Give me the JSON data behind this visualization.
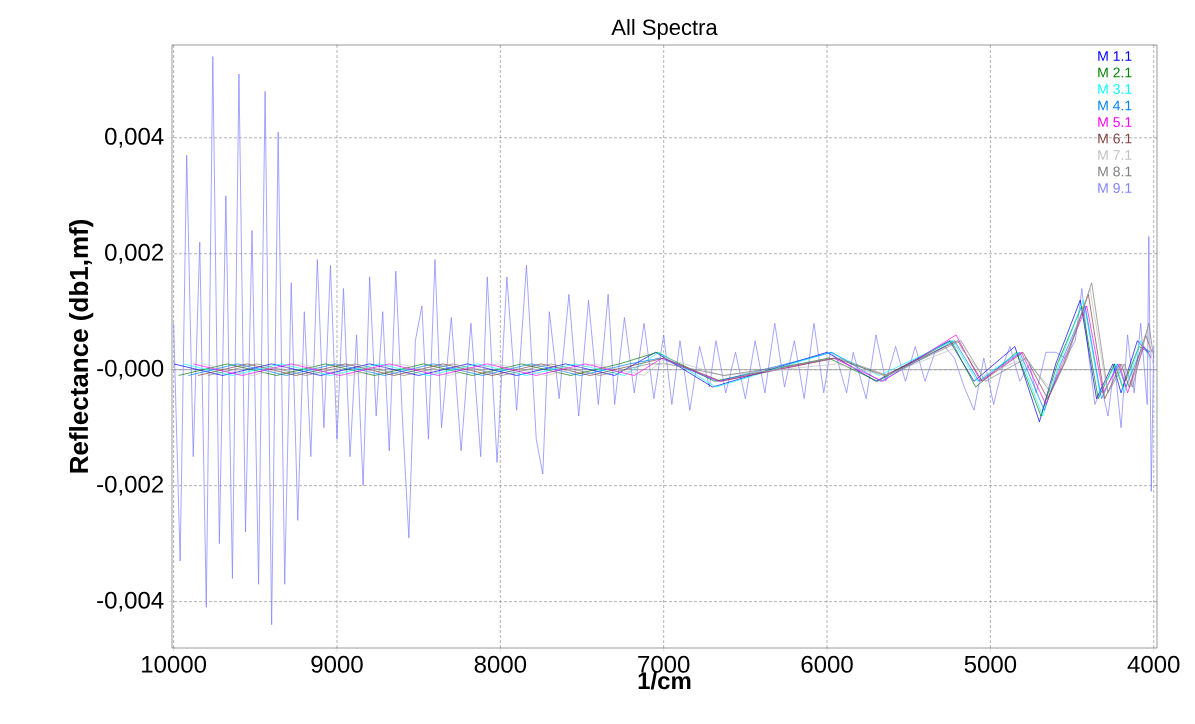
{
  "chart_data": {
    "type": "line",
    "title": "All Spectra",
    "xlabel": "1/cm",
    "ylabel": "Reflectance (db1,mf)",
    "xlim": [
      10010,
      3980
    ],
    "ylim": [
      -0.0048,
      0.0056
    ],
    "xticks": [
      10000,
      9000,
      8000,
      7000,
      6000,
      5000,
      4000
    ],
    "yticks": [
      {
        "value": 0.004,
        "label": "0,004"
      },
      {
        "value": 0.002,
        "label": "0,002"
      },
      {
        "value": 0,
        "label": "-0,000"
      },
      {
        "value": -0.002,
        "label": "-0,002"
      },
      {
        "value": -0.004,
        "label": "-0,004"
      }
    ],
    "grid": true,
    "legend": "top right",
    "ref_lines": [
      {
        "axis": "y",
        "value": 0,
        "color": "#a0a0a0"
      }
    ],
    "series": [
      {
        "name": "M 1.1",
        "color": "#0000ff",
        "x": [
          10000,
          9700,
          9400,
          9100,
          8800,
          8500,
          8200,
          7900,
          7600,
          7300,
          7050,
          6700,
          6000,
          5700,
          5250,
          5100,
          4850,
          4700,
          4600,
          4450,
          4350,
          4250,
          4200,
          4100,
          4035
        ],
        "values": [
          0.0001,
          -0.0001,
          0.0001,
          -0.0001,
          0.0001,
          -0.0001,
          0.0001,
          -0.0001,
          0.0001,
          -0.0001,
          0.0003,
          -0.0003,
          0.0003,
          -0.0002,
          0.0005,
          -0.0002,
          0.0004,
          -0.0009,
          0.0001,
          0.0012,
          -0.0005,
          0.0001,
          -0.0004,
          0.0005,
          0.0003
        ]
      },
      {
        "name": "M 2.1",
        "color": "#008000",
        "x": [
          9970,
          9670,
          9370,
          9070,
          8770,
          8470,
          8170,
          7870,
          7570,
          7270,
          7040,
          6690,
          5990,
          5690,
          5240,
          5090,
          4840,
          4690,
          4590,
          4440,
          4340,
          4240,
          4190,
          4090,
          4030
        ],
        "values": [
          -0.0001,
          0.0001,
          -0.0001,
          0.0001,
          -0.0001,
          0.0001,
          -0.0001,
          0.0001,
          -0.0001,
          0.0001,
          0.0003,
          -0.0002,
          0.0002,
          -0.0002,
          0.0005,
          -0.0003,
          0.0003,
          -0.0008,
          0.0001,
          0.0011,
          -0.0005,
          0.0001,
          -0.0003,
          0.0004,
          0.0003
        ]
      },
      {
        "name": "M 3.1",
        "color": "#00ffff",
        "x": [
          9940,
          9640,
          9340,
          9040,
          8740,
          8440,
          8140,
          7840,
          7540,
          7240,
          7030,
          6680,
          5980,
          5680,
          5230,
          5080,
          4830,
          4680,
          4580,
          4430,
          4330,
          4230,
          4180,
          4080,
          4025
        ],
        "values": [
          0.0001,
          -0.0001,
          0.0001,
          -0.0001,
          0.0001,
          -0.0001,
          0.0001,
          -0.0001,
          0.0001,
          -0.0001,
          0.0003,
          -0.0003,
          0.0003,
          -0.0001,
          0.0005,
          -0.0002,
          0.0003,
          -0.0008,
          0.0001,
          0.0012,
          -0.0004,
          0.0001,
          -0.0004,
          0.0005,
          0.0002
        ]
      },
      {
        "name": "M 4.1",
        "color": "#0080ff",
        "x": [
          9910,
          9610,
          9310,
          9010,
          8710,
          8410,
          8110,
          7810,
          7510,
          7210,
          7020,
          6670,
          5970,
          5670,
          5220,
          5070,
          4820,
          4670,
          4570,
          4420,
          4320,
          4220,
          4170,
          4070,
          4020
        ],
        "values": [
          -0.0001,
          0.0001,
          -0.0001,
          0.0001,
          -0.0001,
          0.0001,
          -0.0001,
          0.0001,
          -0.0001,
          0.0001,
          0.0002,
          -0.0002,
          0.0003,
          -0.0002,
          0.0005,
          -0.0002,
          0.0003,
          -0.0007,
          0.0001,
          0.0011,
          -0.0005,
          0.0001,
          -0.0003,
          0.0004,
          0.0003
        ]
      },
      {
        "name": "M 5.1",
        "color": "#ff00ff",
        "x": [
          9880,
          9580,
          9280,
          8980,
          8680,
          8380,
          8080,
          7780,
          7480,
          7180,
          7010,
          6660,
          5960,
          5660,
          5210,
          5060,
          4810,
          4660,
          4560,
          4410,
          4310,
          4210,
          4160,
          4060,
          4015
        ],
        "values": [
          0.0001,
          -0.0001,
          0.0001,
          -0.0001,
          0.0001,
          -0.0001,
          0.0001,
          -0.0001,
          0.0001,
          -0.0001,
          0.0002,
          -0.0002,
          0.0002,
          -0.0002,
          0.0006,
          -0.0002,
          0.0003,
          -0.0006,
          0.0001,
          0.0011,
          -0.0004,
          0.0001,
          -0.0004,
          0.0004,
          0.0002
        ]
      },
      {
        "name": "M 6.1",
        "color": "#804040",
        "x": [
          9850,
          9550,
          9250,
          8950,
          8650,
          8350,
          8050,
          7750,
          7450,
          7150,
          7000,
          6650,
          5950,
          5650,
          5200,
          5050,
          4800,
          4650,
          4550,
          4400,
          4300,
          4200,
          4150,
          4050,
          4010
        ],
        "values": [
          -0.0001,
          0.0001,
          -0.0001,
          0.0001,
          -0.0001,
          0.0001,
          -0.0001,
          0.0001,
          -0.0001,
          0.0001,
          0.0002,
          -0.0002,
          0.0002,
          -0.0001,
          0.0005,
          -0.0002,
          0.0003,
          -0.0005,
          0.0001,
          0.0013,
          -0.0005,
          0.0001,
          -0.0003,
          0.0006,
          0.0003
        ]
      },
      {
        "name": "M 7.1",
        "color": "#c0c0c0",
        "x": [
          9820,
          9520,
          9220,
          8920,
          8620,
          8320,
          8020,
          7720,
          7420,
          7120,
          6990,
          6640,
          5940,
          5640,
          5190,
          5040,
          4790,
          4640,
          4540,
          4390,
          4290,
          4190,
          4140,
          4040,
          4005
        ],
        "values": [
          0.0001,
          -0.0001,
          0.0001,
          -0.0001,
          0.0001,
          -0.0001,
          0.0001,
          -0.0001,
          0.0001,
          -0.0001,
          0.0002,
          -0.0001,
          0.0001,
          -0.0001,
          0.0004,
          -0.0001,
          0.0002,
          -0.0003,
          0.0002,
          0.0014,
          -0.0003,
          0.0001,
          -0.0003,
          0.0007,
          0.0001
        ]
      },
      {
        "name": "M 8.1",
        "color": "#808080",
        "x": [
          9790,
          9490,
          9190,
          8890,
          8590,
          8290,
          7990,
          7690,
          7390,
          7090,
          6980,
          6630,
          5930,
          5630,
          5180,
          5030,
          4780,
          4630,
          4530,
          4380,
          4280,
          4180,
          4130,
          4030,
          4000
        ],
        "values": [
          -0.0001,
          0.0001,
          -0.0001,
          0.0001,
          -0.0001,
          0.0001,
          -0.0001,
          0.0001,
          -0.0001,
          0.0001,
          0.0001,
          -0.0001,
          0.0002,
          -0.0001,
          0.0005,
          -0.0002,
          0.0002,
          -0.0004,
          0.0002,
          0.0015,
          -0.0004,
          0.0001,
          -0.0003,
          0.0008,
          0.0002
        ]
      },
      {
        "name": "M 9.1",
        "color": "#8080ff",
        "x": [
          10000,
          9960,
          9920,
          9880,
          9840,
          9800,
          9760,
          9720,
          9680,
          9640,
          9600,
          9560,
          9520,
          9480,
          9440,
          9400,
          9360,
          9320,
          9280,
          9240,
          9200,
          9160,
          9120,
          9080,
          9040,
          9000,
          8960,
          8920,
          8880,
          8840,
          8800,
          8760,
          8720,
          8680,
          8640,
          8600,
          8560,
          8520,
          8480,
          8440,
          8400,
          8360,
          8300,
          8240,
          8180,
          8120,
          8080,
          8020,
          7960,
          7900,
          7840,
          7780,
          7740,
          7700,
          7640,
          7580,
          7520,
          7460,
          7400,
          7340,
          7300,
          7240,
          7180,
          7120,
          7060,
          7000,
          6950,
          6900,
          6840,
          6780,
          6720,
          6680,
          6620,
          6560,
          6500,
          6440,
          6380,
          6320,
          6260,
          6200,
          6140,
          6080,
          6020,
          5980,
          5940,
          5880,
          5840,
          5760,
          5700,
          5640,
          5580,
          5520,
          5460,
          5400,
          5340,
          5280,
          5220,
          5160,
          5100,
          5040,
          4980,
          4920,
          4880,
          4820,
          4760,
          4720,
          4660,
          4600,
          4540,
          4480,
          4440,
          4400,
          4360,
          4320,
          4280,
          4240,
          4200,
          4160,
          4120,
          4080,
          4040,
          4030,
          4015,
          4000
        ],
        "values": [
          0.0008,
          -0.0033,
          0.0037,
          -0.0015,
          0.0022,
          -0.0041,
          0.0054,
          -0.003,
          0.003,
          -0.0036,
          0.0051,
          -0.0028,
          0.0024,
          -0.0037,
          0.0048,
          -0.0044,
          0.0041,
          -0.0037,
          0.0015,
          -0.0026,
          0.001,
          -0.0015,
          0.0019,
          -0.001,
          0.0018,
          -0.0012,
          0.0014,
          -0.0015,
          0.0006,
          -0.002,
          0.0016,
          -0.0008,
          0.001,
          -0.0014,
          0.0017,
          -0.0008,
          -0.0029,
          0.0005,
          0.0011,
          -0.0012,
          0.0019,
          -0.001,
          0.0009,
          -0.0014,
          0.0008,
          -0.0015,
          0.0016,
          -0.0016,
          0.0016,
          -0.0007,
          0.0018,
          -0.0012,
          -0.0018,
          0.001,
          -0.0005,
          0.0013,
          -0.0008,
          0.0012,
          -0.0006,
          0.0013,
          -0.0006,
          0.0009,
          -0.0004,
          0.0008,
          -0.0005,
          0.0006,
          -0.0006,
          0.0005,
          -0.0007,
          0.0004,
          -0.0003,
          0.0005,
          -0.0004,
          0.0003,
          -0.0005,
          0.0005,
          -0.0004,
          0.0008,
          -0.0003,
          0.0005,
          -0.0005,
          0.0008,
          -0.0004,
          0.0003,
          0.0002,
          -0.0004,
          0.0003,
          -0.0005,
          0.0006,
          -0.0002,
          0.0004,
          -0.0002,
          0.0004,
          -0.0002,
          0.0003,
          0.0004,
          0.0002,
          -0.0003,
          -0.0007,
          0.0002,
          -0.0006,
          0.0001,
          0.0004,
          -0.0002,
          0.0001,
          -0.0004,
          0.0003,
          0.0003,
          0.0002,
          0.0005,
          0.0014,
          0.0003,
          -0.0006,
          -0.0003,
          -0.0008,
          0.0001,
          -0.001,
          0.0006,
          -0.0004,
          0.0008,
          -0.0006,
          0.0023,
          -0.0021,
          0.0004
        ]
      }
    ]
  }
}
